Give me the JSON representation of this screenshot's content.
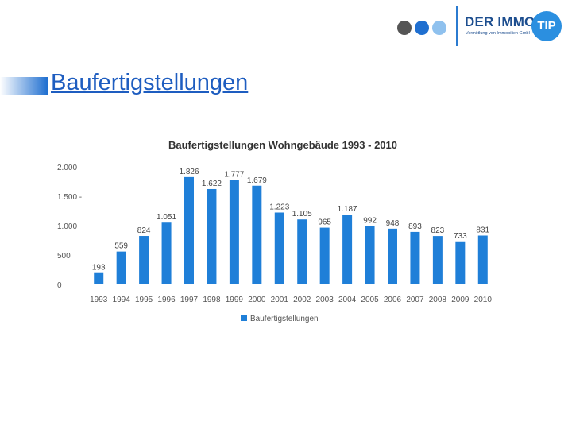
{
  "header": {
    "logo": {
      "brand_main": "DER IMMO",
      "brand_badge": "TIP",
      "tagline": "Vermittlung von Immobilien GmbH",
      "dot_colors": [
        "#555555",
        "#1f6fd0",
        "#8fc1ee"
      ]
    }
  },
  "slide": {
    "title": "Baufertigstellungen"
  },
  "chart_data": {
    "type": "bar",
    "title": "Baufertigstellungen Wohngebäude 1993 - 2010",
    "categories": [
      "1993",
      "1994",
      "1995",
      "1996",
      "1997",
      "1998",
      "1999",
      "2000",
      "2001",
      "2002",
      "2003",
      "2004",
      "2005",
      "2006",
      "2007",
      "2008",
      "2009",
      "2010"
    ],
    "series": [
      {
        "name": "Baufertigstellungen",
        "values": [
          193,
          559,
          824,
          1051,
          1826,
          1622,
          1777,
          1679,
          1223,
          1105,
          965,
          1187,
          992,
          948,
          893,
          823,
          733,
          831
        ],
        "data_labels": [
          "193",
          "559",
          "824",
          "1.051",
          "1.826",
          "1.622",
          "1.777",
          "1.679",
          "1.223",
          "1.105",
          "965",
          "1.187",
          "992",
          "948",
          "893",
          "823",
          "733",
          "831"
        ]
      }
    ],
    "y_ticks": [
      0,
      500,
      1000,
      1500,
      2000
    ],
    "y_tick_labels": [
      "0",
      "500",
      "1.000",
      "1.500 -",
      "2.000"
    ],
    "ylim": [
      0,
      2000
    ],
    "grid": false,
    "legend": "bottom",
    "bar_color": "#1f7fd8"
  }
}
